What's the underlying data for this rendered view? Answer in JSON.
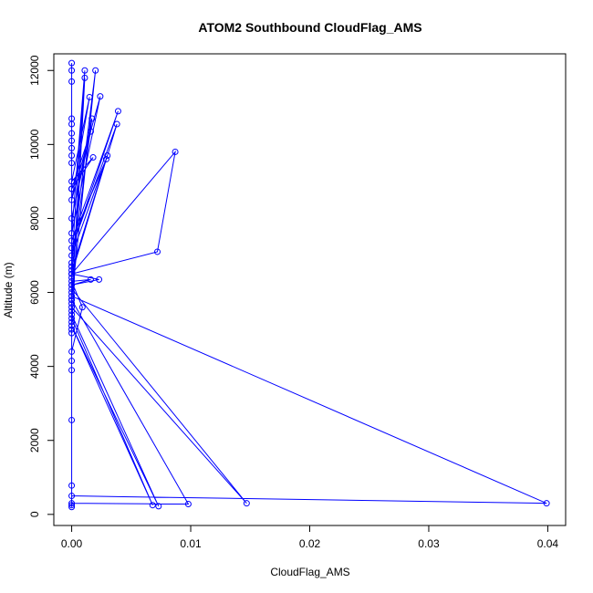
{
  "chart_data": {
    "type": "line",
    "title": "ATOM2 Southbound CloudFlag_AMS",
    "xlabel": "CloudFlag_AMS",
    "ylabel": "Altitude (m)",
    "xlim": [
      -0.0015,
      0.0415
    ],
    "ylim": [
      -300,
      12450
    ],
    "xticks": [
      0,
      0.01,
      0.02,
      0.03,
      0.04
    ],
    "xtick_labels": [
      "0.00",
      "0.01",
      "0.02",
      "0.03",
      "0.04"
    ],
    "yticks": [
      0,
      2000,
      4000,
      6000,
      8000,
      10000,
      12000
    ],
    "ytick_labels": [
      "0",
      "2000",
      "4000",
      "6000",
      "8000",
      "10000",
      "12000"
    ],
    "grid": false,
    "legend": "none",
    "series_color": "#0000ff",
    "marker": "open-circle",
    "series": [
      {
        "x": [
          0,
          0,
          0,
          0.0068,
          0,
          0.0073,
          0,
          0,
          0.0098,
          0,
          0,
          0.0147,
          0,
          0,
          0.0399,
          0,
          0,
          0,
          0,
          0,
          0,
          0.0009,
          0,
          0.0016,
          0,
          0.0023,
          0,
          0.0072,
          0.0087,
          0,
          0.0038,
          0,
          0.0039,
          0,
          0.0029,
          0,
          0.003,
          0,
          0.0017,
          0,
          0.0016,
          0,
          0.0018,
          0,
          0.0015,
          0,
          0.0024,
          0,
          0.0011,
          0,
          0.002,
          0,
          0.0011,
          0,
          0,
          0,
          0,
          0,
          0,
          0,
          0,
          0,
          0,
          0,
          0,
          0,
          0,
          0,
          0,
          0,
          0,
          0,
          0
        ],
        "y": [
          200,
          250,
          5300,
          250,
          5100,
          220,
          5400,
          300,
          280,
          5800,
          5600,
          300,
          6100,
          5900,
          300,
          500,
          780,
          2550,
          3900,
          4150,
          4400,
          5600,
          6300,
          6350,
          6200,
          6350,
          6500,
          7100,
          9800,
          6500,
          10550,
          7200,
          10900,
          7400,
          9600,
          7000,
          9700,
          6600,
          10700,
          8000,
          10350,
          8800,
          9650,
          9000,
          11280,
          8500,
          11300,
          7600,
          12000,
          6800,
          12000,
          5800,
          11800,
          5000,
          4900,
          5200,
          5500,
          5700,
          6000,
          6200,
          6400,
          6700,
          8800,
          9500,
          9700,
          9900,
          10100,
          10300,
          10550,
          10700,
          11700,
          12000,
          12200
        ]
      }
    ]
  }
}
